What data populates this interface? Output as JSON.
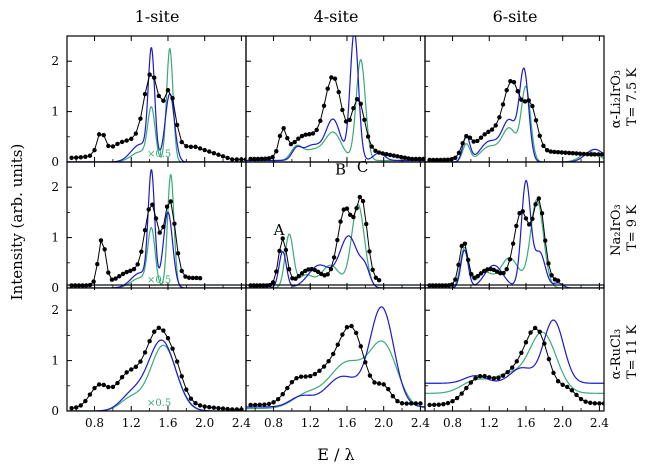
{
  "figure": {
    "col_titles": [
      "1-site",
      "4-site",
      "6-site"
    ],
    "row_labels": [
      {
        "line1": "α-Li₂IrO₃",
        "line2": "T= 7.5 K"
      },
      {
        "line1": "Na₂IrO₃",
        "line2": "T= 9 K"
      },
      {
        "line1": "α-RuCl₃",
        "line2": "T= 11 K"
      }
    ],
    "ylabel": "Intensity (arb. units)",
    "xlabel": "E / λ",
    "scale_note": "×0.5",
    "peak_labels": [
      "A",
      "B",
      "C"
    ]
  },
  "colors": {
    "data": "#000000",
    "blue": "#1a1ad0",
    "green": "#3aaa77",
    "note": "#3aaa77"
  },
  "chart_data": {
    "type": "line",
    "xlim": [
      0.5,
      2.45
    ],
    "ylim": [
      0,
      2.5
    ],
    "x_ticks": [
      0.8,
      1.2,
      1.6,
      2.0,
      2.4
    ],
    "x_tick_labels": [
      "0.8",
      "1.2",
      "1.6",
      "2.0",
      "2.4"
    ],
    "y_ticks": [
      0,
      1,
      2
    ],
    "y_tick_labels": [
      "0",
      "1",
      "2"
    ],
    "grid": false,
    "panels": [
      {
        "row": 0,
        "col": 0,
        "note": "×0.5",
        "data": {
          "x0": 0.55,
          "x1": 2.45,
          "step": 0.05,
          "base": 0.08,
          "tail": 0.05,
          "hi_base": 0.3,
          "peaks": [
            [
              0.87,
              0.42,
              0.04
            ],
            [
              1.15,
              0.3,
              0.2
            ],
            [
              1.42,
              1.45,
              0.08
            ],
            [
              1.62,
              1.1,
              0.06
            ]
          ]
        },
        "blue": {
          "base": 0.0,
          "peaks": [
            [
              1.42,
              2.1,
              0.035
            ],
            [
              1.62,
              1.35,
              0.05
            ],
            [
              1.3,
              0.35,
              0.1
            ]
          ]
        },
        "green": {
          "base": 0.0,
          "peaks": [
            [
              1.42,
              1.0,
              0.04
            ],
            [
              1.62,
              2.25,
              0.035
            ],
            [
              1.3,
              0.2,
              0.1
            ]
          ]
        }
      },
      {
        "row": 0,
        "col": 1,
        "data": {
          "x0": 0.55,
          "x1": 2.45,
          "step": 0.04,
          "base": 0.06,
          "tail": 0.06,
          "hi_base": 0.2,
          "peaks": [
            [
              0.9,
              0.5,
              0.04
            ],
            [
              1.15,
              0.45,
              0.15
            ],
            [
              1.45,
              1.5,
              0.09
            ],
            [
              1.72,
              1.05,
              0.07
            ]
          ]
        },
        "blue": {
          "base": 0.03,
          "peaks": [
            [
              1.68,
              2.55,
              0.045
            ],
            [
              1.45,
              0.8,
              0.08
            ],
            [
              1.05,
              0.2,
              0.05
            ],
            [
              1.22,
              0.3,
              0.1
            ],
            [
              1.95,
              0.15,
              0.06
            ]
          ]
        },
        "green": {
          "base": 0.03,
          "peaks": [
            [
              1.75,
              2.0,
              0.05
            ],
            [
              1.45,
              0.55,
              0.09
            ],
            [
              1.05,
              0.25,
              0.06
            ],
            [
              1.22,
              0.2,
              0.1
            ]
          ]
        }
      },
      {
        "row": 0,
        "col": 2,
        "data": {
          "x0": 0.55,
          "x1": 2.45,
          "step": 0.04,
          "base": 0.04,
          "tail": 0.15,
          "hi_base": 0.2,
          "peaks": [
            [
              0.95,
              0.35,
              0.05
            ],
            [
              1.2,
              0.5,
              0.15
            ],
            [
              1.45,
              1.35,
              0.09
            ],
            [
              1.65,
              0.9,
              0.07
            ]
          ]
        },
        "blue": {
          "base": 0.0,
          "peaks": [
            [
              1.58,
              1.75,
              0.05
            ],
            [
              1.42,
              0.8,
              0.08
            ],
            [
              0.95,
              0.5,
              0.04
            ],
            [
              1.2,
              0.4,
              0.1
            ],
            [
              2.35,
              0.25,
              0.1
            ]
          ]
        },
        "green": {
          "base": 0.0,
          "peaks": [
            [
              1.6,
              1.45,
              0.05
            ],
            [
              1.42,
              0.65,
              0.08
            ],
            [
              0.95,
              0.35,
              0.04
            ],
            [
              1.2,
              0.3,
              0.1
            ],
            [
              2.3,
              0.2,
              0.1
            ]
          ]
        }
      },
      {
        "row": 1,
        "col": 0,
        "note": "×0.5",
        "data": {
          "x0": 0.55,
          "x1": 1.95,
          "step": 0.04,
          "base": 0.05,
          "tail": 0.15,
          "hi_base": 0.2,
          "peaks": [
            [
              0.88,
              0.9,
              0.04
            ],
            [
              1.42,
              1.45,
              0.07
            ],
            [
              1.62,
              1.55,
              0.06
            ],
            [
              1.2,
              0.25,
              0.15
            ]
          ]
        },
        "blue": {
          "base": 0.0,
          "peaks": [
            [
              1.42,
              2.2,
              0.035
            ],
            [
              1.6,
              1.5,
              0.05
            ],
            [
              1.3,
              0.3,
              0.1
            ]
          ]
        },
        "green": {
          "base": 0.0,
          "peaks": [
            [
              1.42,
              1.1,
              0.04
            ],
            [
              1.63,
              2.25,
              0.035
            ],
            [
              1.3,
              0.2,
              0.1
            ]
          ]
        }
      },
      {
        "row": 1,
        "col": 1,
        "labels": [
          [
            0.86,
            1.05,
            "A"
          ],
          [
            1.53,
            2.25,
            "B"
          ],
          [
            1.77,
            2.3,
            "C"
          ]
        ],
        "data": {
          "x0": 0.55,
          "x1": 1.95,
          "step": 0.035,
          "base": 0.05,
          "tail": 0.1,
          "hi_base": 0.15,
          "peaks": [
            [
              0.9,
              0.92,
              0.045
            ],
            [
              1.58,
              1.45,
              0.08
            ],
            [
              1.76,
              1.55,
              0.06
            ],
            [
              1.2,
              0.3,
              0.12
            ]
          ]
        },
        "blue": {
          "base": 0.0,
          "peaks": [
            [
              0.9,
              0.72,
              0.04
            ],
            [
              1.62,
              1.02,
              0.1
            ],
            [
              1.3,
              0.45,
              0.12
            ],
            [
              1.8,
              0.3,
              0.05
            ]
          ]
        },
        "green": {
          "base": 0.0,
          "peaks": [
            [
              0.97,
              1.05,
              0.045
            ],
            [
              1.72,
              1.65,
              0.07
            ],
            [
              1.42,
              0.45,
              0.1
            ],
            [
              1.15,
              0.25,
              0.08
            ]
          ]
        }
      },
      {
        "row": 1,
        "col": 2,
        "data": {
          "x0": 0.55,
          "x1": 1.95,
          "step": 0.035,
          "base": 0.05,
          "tail": 0.1,
          "hi_base": 0.15,
          "peaks": [
            [
              0.92,
              0.85,
              0.045
            ],
            [
              1.55,
              1.4,
              0.08
            ],
            [
              1.74,
              1.55,
              0.06
            ],
            [
              1.2,
              0.3,
              0.12
            ]
          ]
        },
        "blue": {
          "base": 0.0,
          "peaks": [
            [
              1.6,
              2.1,
              0.05
            ],
            [
              1.75,
              0.7,
              0.06
            ],
            [
              0.93,
              0.75,
              0.04
            ],
            [
              1.25,
              0.45,
              0.1
            ],
            [
              1.95,
              0.1,
              0.05
            ]
          ]
        },
        "green": {
          "base": 0.0,
          "peaks": [
            [
              1.72,
              1.75,
              0.07
            ],
            [
              1.42,
              0.6,
              0.1
            ],
            [
              0.93,
              0.8,
              0.045
            ],
            [
              1.15,
              0.3,
              0.08
            ]
          ]
        }
      },
      {
        "row": 2,
        "col": 0,
        "note": "×0.5",
        "data": {
          "x0": 0.55,
          "x1": 2.4,
          "step": 0.05,
          "base": 0.05,
          "tail": 0.03,
          "hi_base": 0.1,
          "peaks": [
            [
              0.85,
              0.45,
              0.1
            ],
            [
              1.15,
              0.6,
              0.12
            ],
            [
              1.5,
              1.55,
              0.15
            ],
            [
              1.7,
              0.25,
              0.08
            ]
          ]
        },
        "blue": {
          "base": 0.0,
          "peaks": [
            [
              1.53,
              1.4,
              0.15
            ],
            [
              1.2,
              0.3,
              0.12
            ]
          ]
        },
        "green": {
          "base": 0.0,
          "peaks": [
            [
              1.55,
              1.3,
              0.14
            ],
            [
              1.2,
              0.25,
              0.12
            ]
          ]
        }
      },
      {
        "row": 2,
        "col": 1,
        "data": {
          "x0": 0.55,
          "x1": 2.4,
          "step": 0.05,
          "base": 0.12,
          "tail": 0.15,
          "hi_base": 0.1,
          "peaks": [
            [
              1.05,
              0.45,
              0.12
            ],
            [
              1.35,
              0.6,
              0.15
            ],
            [
              1.65,
              1.5,
              0.14
            ],
            [
              2.0,
              0.35,
              0.08
            ]
          ]
        },
        "blue": {
          "base": 0.08,
          "peaks": [
            [
              1.98,
              1.95,
              0.13
            ],
            [
              1.55,
              0.6,
              0.18
            ],
            [
              1.1,
              0.2,
              0.12
            ]
          ]
        },
        "green": {
          "base": 0.05,
          "peaks": [
            [
              2.0,
              1.2,
              0.15
            ],
            [
              1.6,
              0.9,
              0.2
            ],
            [
              1.15,
              0.25,
              0.15
            ]
          ]
        }
      },
      {
        "row": 2,
        "col": 2,
        "data": {
          "x0": 0.55,
          "x1": 2.45,
          "step": 0.05,
          "base": 0.12,
          "tail": 0.15,
          "hi_base": 0.1,
          "peaks": [
            [
              1.1,
              0.55,
              0.15
            ],
            [
              1.45,
              0.55,
              0.14
            ],
            [
              1.72,
              1.45,
              0.13
            ],
            [
              2.05,
              0.3,
              0.1
            ]
          ]
        },
        "blue": {
          "base": 0.55,
          "peaks": [
            [
              1.9,
              1.25,
              0.11
            ],
            [
              1.55,
              0.3,
              0.12
            ],
            [
              1.05,
              0.15,
              0.12
            ]
          ]
        },
        "green": {
          "base": 0.35,
          "peaks": [
            [
              1.78,
              1.2,
              0.15
            ],
            [
              1.4,
              0.35,
              0.15
            ],
            [
              1.05,
              0.25,
              0.15
            ]
          ]
        }
      }
    ]
  }
}
